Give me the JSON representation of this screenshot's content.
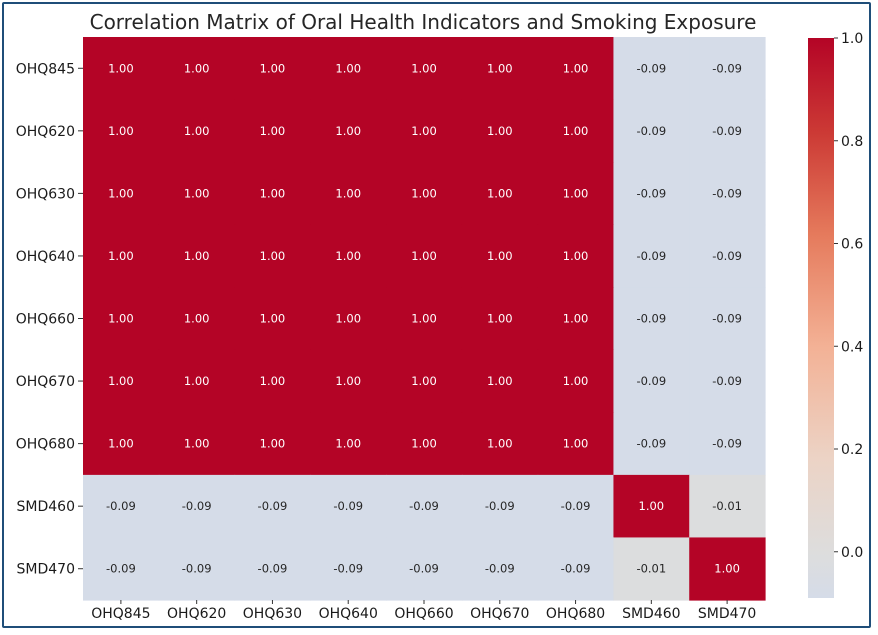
{
  "chart_data": {
    "type": "heatmap",
    "title": "Correlation Matrix of Oral Health Indicators and Smoking Exposure",
    "row_labels": [
      "OHQ845",
      "OHQ620",
      "OHQ630",
      "OHQ640",
      "OHQ660",
      "OHQ670",
      "OHQ680",
      "SMD460",
      "SMD470"
    ],
    "col_labels": [
      "OHQ845",
      "OHQ620",
      "OHQ630",
      "OHQ640",
      "OHQ660",
      "OHQ670",
      "OHQ680",
      "SMD460",
      "SMD470"
    ],
    "values": [
      [
        1.0,
        1.0,
        1.0,
        1.0,
        1.0,
        1.0,
        1.0,
        -0.09,
        -0.09
      ],
      [
        1.0,
        1.0,
        1.0,
        1.0,
        1.0,
        1.0,
        1.0,
        -0.09,
        -0.09
      ],
      [
        1.0,
        1.0,
        1.0,
        1.0,
        1.0,
        1.0,
        1.0,
        -0.09,
        -0.09
      ],
      [
        1.0,
        1.0,
        1.0,
        1.0,
        1.0,
        1.0,
        1.0,
        -0.09,
        -0.09
      ],
      [
        1.0,
        1.0,
        1.0,
        1.0,
        1.0,
        1.0,
        1.0,
        -0.09,
        -0.09
      ],
      [
        1.0,
        1.0,
        1.0,
        1.0,
        1.0,
        1.0,
        1.0,
        -0.09,
        -0.09
      ],
      [
        1.0,
        1.0,
        1.0,
        1.0,
        1.0,
        1.0,
        1.0,
        -0.09,
        -0.09
      ],
      [
        -0.09,
        -0.09,
        -0.09,
        -0.09,
        -0.09,
        -0.09,
        -0.09,
        1.0,
        -0.01
      ],
      [
        -0.09,
        -0.09,
        -0.09,
        -0.09,
        -0.09,
        -0.09,
        -0.09,
        -0.01,
        1.0
      ]
    ],
    "value_format": "0.00",
    "colormap": "coolwarm",
    "colorbar": {
      "range": [
        -0.09,
        1.0
      ],
      "ticks": [
        0.0,
        0.2,
        0.4,
        0.6,
        0.8,
        1.0
      ],
      "tick_labels": [
        "0.0",
        "0.2",
        "0.4",
        "0.6",
        "0.8",
        "1.0"
      ],
      "position": "right"
    }
  },
  "colors": {
    "high": "#b40426",
    "low": "#d5dce8",
    "mid": "#dddddd",
    "frame": "#1f4e79",
    "label_on_dark": "#ffffff",
    "label_on_light": "#262626"
  }
}
